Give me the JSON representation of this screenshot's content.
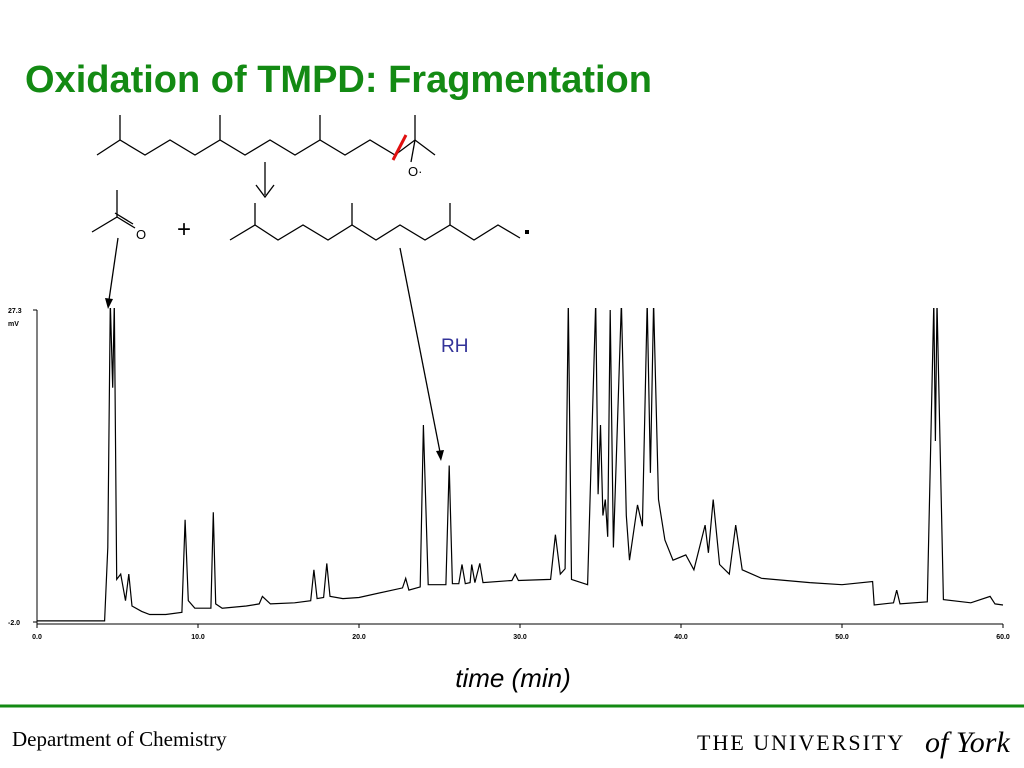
{
  "slide": {
    "title": "Oxidation of TMPD: Fragmentation",
    "footer_left": "Department of Chemistry",
    "logo_main": "THE UNIVERSITY",
    "logo_script": "of York",
    "scheme": {
      "radical_oxygen": "O·",
      "ketone_oxygen": "O",
      "plus": "+",
      "rh_label": "RH"
    }
  },
  "chart_data": {
    "type": "line",
    "x_label": "time (min)",
    "y_label": "mV",
    "color": "#000000",
    "x": [
      0,
      2,
      4.2,
      4.4,
      4.55,
      4.7,
      4.8,
      4.95,
      5.2,
      5.5,
      5.7,
      5.9,
      6.5,
      7,
      8,
      9,
      9.2,
      9.4,
      9.8,
      10.8,
      10.95,
      11.1,
      11.5,
      13,
      13.8,
      14,
      14.5,
      16,
      17,
      17.2,
      17.4,
      17.8,
      18.0,
      18.2,
      19,
      20,
      22.7,
      22.9,
      23.1,
      23.8,
      24.0,
      24.3,
      25.4,
      25.6,
      25.8,
      26.2,
      26.4,
      26.6,
      26.9,
      27.0,
      27.2,
      27.5,
      27.7,
      29.5,
      29.7,
      29.9,
      31.9,
      32.2,
      32.5,
      32.8,
      33.0,
      33.2,
      34.2,
      34.7,
      34.85,
      35.0,
      35.15,
      35.3,
      35.45,
      35.6,
      35.8,
      36.3,
      36.6,
      36.8,
      37.3,
      37.6,
      37.9,
      38.1,
      38.3,
      38.6,
      39,
      39.5,
      40.3,
      40.8,
      41.5,
      41.7,
      42.0,
      42.4,
      43.0,
      43.4,
      43.8,
      45,
      48,
      50,
      51.9,
      52.0,
      53.2,
      53.4,
      53.6,
      55.3,
      55.7,
      55.8,
      55.9,
      56.3,
      58,
      59.2,
      59.5,
      60
    ],
    "values": [
      -1.9,
      -1.9,
      -1.9,
      5,
      28,
      20,
      28,
      2,
      2.5,
      0,
      2.5,
      -0.5,
      -1.0,
      -1.3,
      -1.3,
      -1.1,
      7.6,
      0,
      -0.7,
      -0.7,
      8.3,
      -0.3,
      -0.7,
      -0.5,
      -0.3,
      0.4,
      -0.3,
      -0.2,
      0,
      2.9,
      0.2,
      0.3,
      3.5,
      0.4,
      0.2,
      0.3,
      1.2,
      2.1,
      1.0,
      1.3,
      16.5,
      1.5,
      1.5,
      12.7,
      1.6,
      1.6,
      3.4,
      1.6,
      1.7,
      3.4,
      1.7,
      3.5,
      1.7,
      1.9,
      2.5,
      1.9,
      2.0,
      6.2,
      2.5,
      3.0,
      28,
      2.0,
      1.5,
      28,
      10,
      16.5,
      8,
      9.5,
      6,
      27.3,
      5,
      28,
      8,
      3.8,
      9,
      7,
      28,
      12,
      28,
      9.5,
      5.7,
      3.8,
      4.3,
      2.9,
      7.1,
      4.5,
      9.5,
      3.4,
      2.5,
      7.1,
      2.9,
      2.1,
      1.7,
      1.5,
      1.8,
      -0.4,
      -0.2,
      1.0,
      -0.3,
      -0.1,
      28,
      15,
      28,
      0.1,
      -0.2,
      0.4,
      -0.3,
      -0.4
    ],
    "xlim": [
      0,
      60
    ],
    "ylim": [
      -2.0,
      27.3
    ],
    "xticks": [
      {
        "value": 0,
        "label": "0.0"
      },
      {
        "value": 10,
        "label": "10.0"
      },
      {
        "value": 20,
        "label": "20.0"
      },
      {
        "value": 30,
        "label": "30.0"
      },
      {
        "value": 40,
        "label": "40.0"
      },
      {
        "value": 50,
        "label": "50.0"
      },
      {
        "value": 60,
        "label": "60.0"
      }
    ],
    "yticks": [
      {
        "value": -2,
        "label": "-2.0"
      },
      27.3
    ]
  }
}
